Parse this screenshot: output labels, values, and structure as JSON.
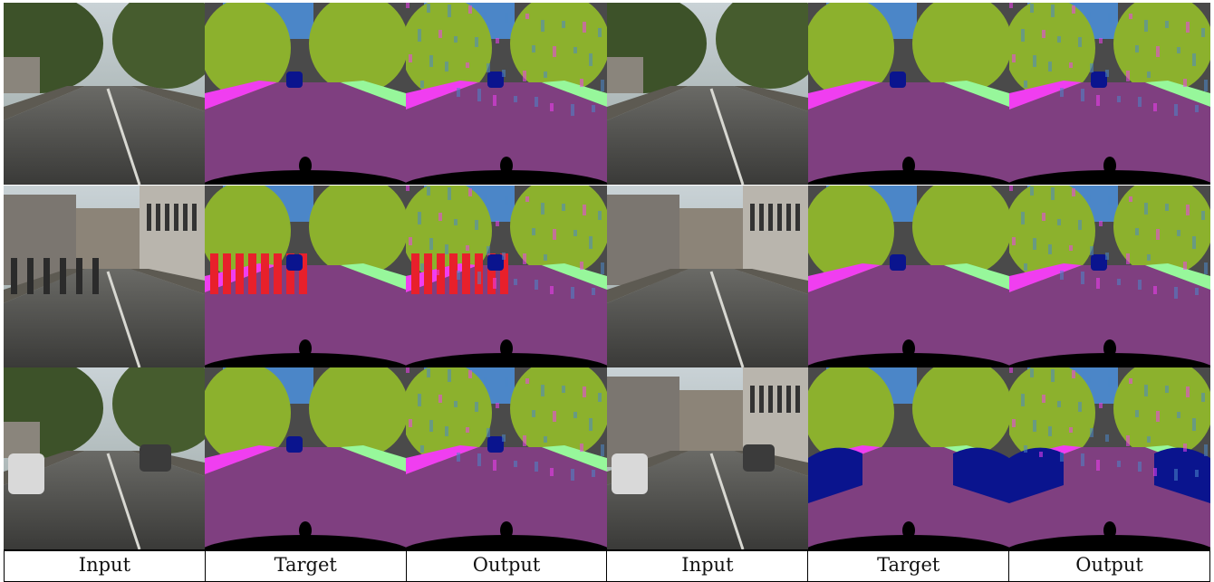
{
  "figure": {
    "columns": [
      "Input",
      "Target",
      "Output",
      "Input",
      "Target",
      "Output"
    ],
    "rows": [
      [
        "photo-street-tree-left",
        "seg-target",
        "seg-output",
        "photo-wide-road-trees",
        "seg-target",
        "seg-output"
      ],
      [
        "photo-plaza-pedestrians",
        "seg-target-pedestrians",
        "seg-output-pedestrians",
        "photo-avenue-buildings",
        "seg-target",
        "seg-output"
      ],
      [
        "photo-road-trees-cars",
        "seg-target",
        "seg-output",
        "photo-narrow-street-parked-cars",
        "seg-target-cars",
        "seg-output-cars"
      ]
    ],
    "palette": {
      "road": "#7f3f80",
      "sidewalk": "#f03ef0",
      "vegetation": "#8cb12d",
      "sky": "#4b86c8",
      "building": "#4a4a4a",
      "car": "#0a148e",
      "person": "#e8202b",
      "terrain": "#97f79b",
      "ego-vehicle": "#000000"
    }
  }
}
